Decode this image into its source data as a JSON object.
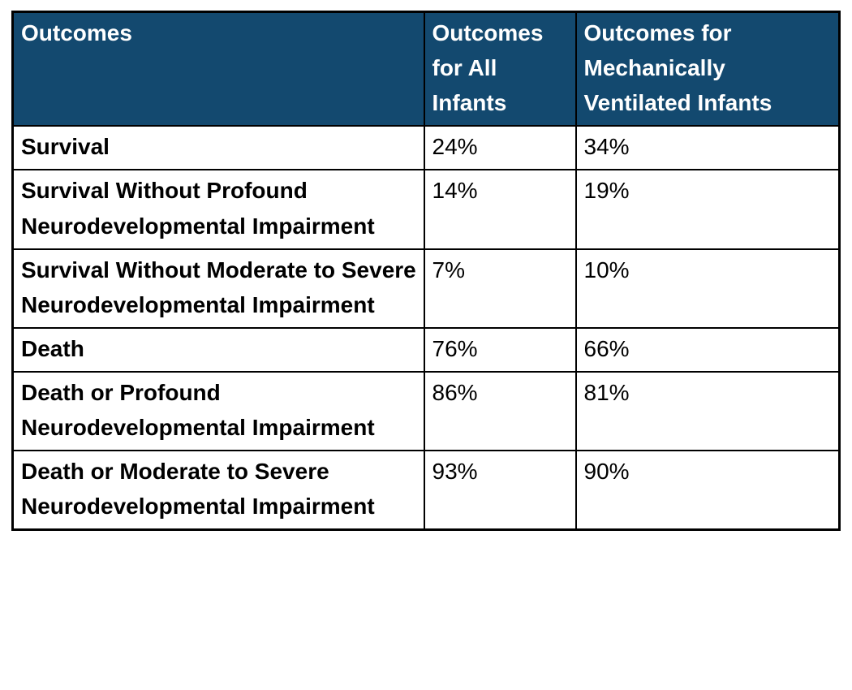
{
  "colors": {
    "header_bg": "#13496F",
    "header_text": "#FFFFFF",
    "body_text": "#000000",
    "border": "#000000"
  },
  "table": {
    "columns": [
      "Outcomes",
      "Outcomes for All Infants",
      "Outcomes for Mechanically Ventilated Infants"
    ],
    "rows": [
      {
        "outcome": "Survival",
        "all_infants": "24%",
        "ventilated_infants": "34%"
      },
      {
        "outcome": "Survival Without Profound Neurodevelopmental Impairment",
        "all_infants": "14%",
        "ventilated_infants": "19%"
      },
      {
        "outcome": "Survival Without Moderate to Severe Neurodevelopmental Impairment",
        "all_infants": "7%",
        "ventilated_infants": "10%"
      },
      {
        "outcome": "Death",
        "all_infants": "76%",
        "ventilated_infants": "66%"
      },
      {
        "outcome": "Death or Profound Neurodevelopmental Impairment",
        "all_infants": "86%",
        "ventilated_infants": "81%"
      },
      {
        "outcome": "Death or Moderate to Severe Neurodevelopmental Impairment",
        "all_infants": "93%",
        "ventilated_infants": "90%"
      }
    ]
  },
  "chart_data": {
    "type": "table",
    "title": "",
    "columns": [
      "Outcomes",
      "Outcomes for All Infants",
      "Outcomes for Mechanically Ventilated Infants"
    ],
    "rows": [
      {
        "outcome": "Survival",
        "all_infants_pct": 24,
        "ventilated_infants_pct": 34
      },
      {
        "outcome": "Survival Without Profound Neurodevelopmental Impairment",
        "all_infants_pct": 14,
        "ventilated_infants_pct": 19
      },
      {
        "outcome": "Survival Without Moderate to Severe Neurodevelopmental Impairment",
        "all_infants_pct": 7,
        "ventilated_infants_pct": 10
      },
      {
        "outcome": "Death",
        "all_infants_pct": 76,
        "ventilated_infants_pct": 66
      },
      {
        "outcome": "Death or Profound Neurodevelopmental Impairment",
        "all_infants_pct": 86,
        "ventilated_infants_pct": 81
      },
      {
        "outcome": "Death or Moderate to Severe Neurodevelopmental Impairment",
        "all_infants_pct": 93,
        "ventilated_infants_pct": 90
      }
    ]
  }
}
